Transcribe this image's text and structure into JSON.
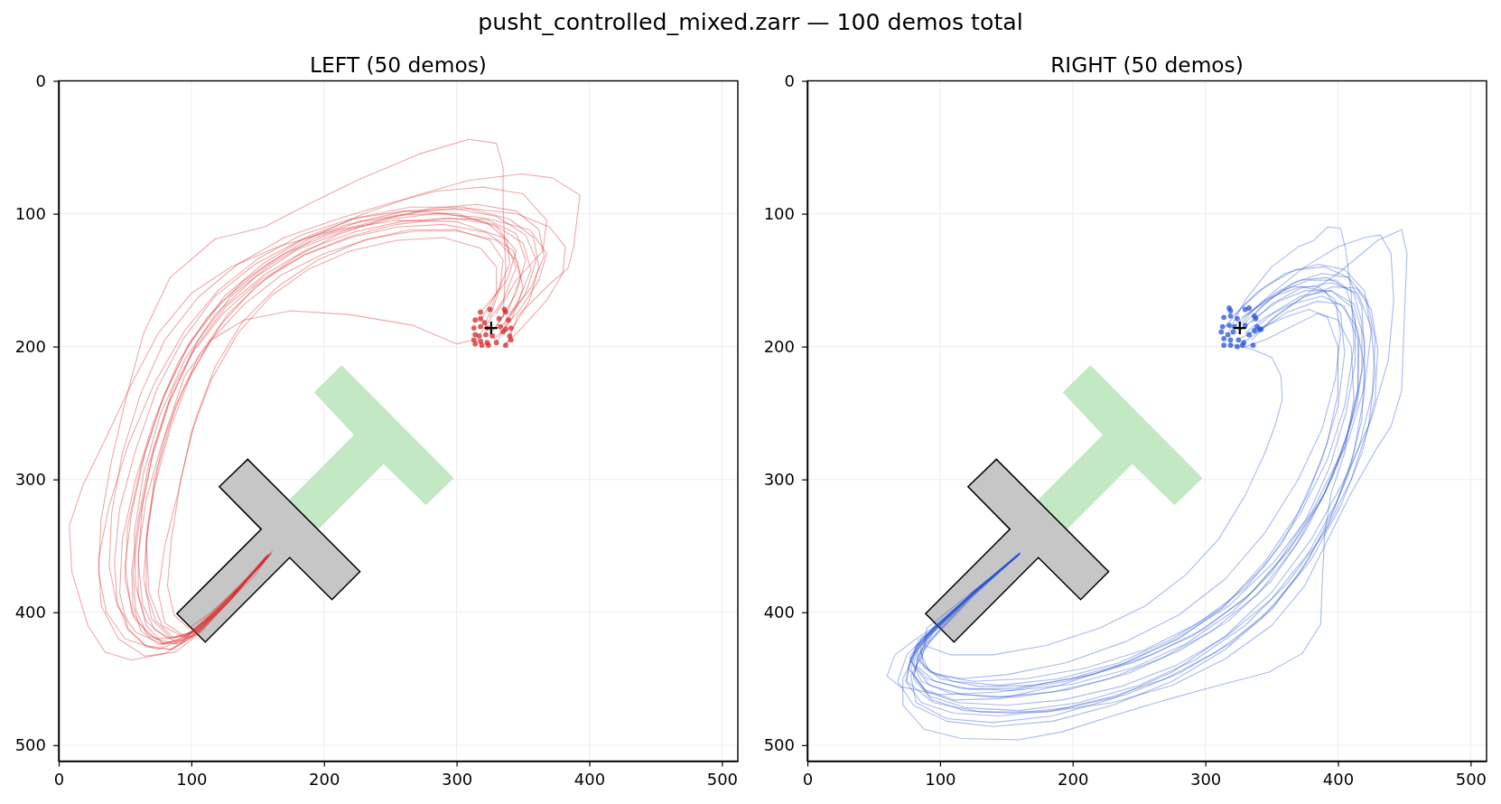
{
  "chart_data": [
    {
      "type": "line",
      "title": "LEFT (50 demos)",
      "annotations": [
        "pusht_controlled_mixed.zarr — 100 demos total"
      ],
      "xlim": [
        0,
        512
      ],
      "ylim": [
        512,
        0
      ],
      "xticks": [
        0,
        100,
        200,
        300,
        400,
        500
      ],
      "yticks": [
        0,
        100,
        200,
        300,
        400,
        500
      ],
      "grid": true,
      "series": [
        {
          "type": "line",
          "color": "#d62728",
          "x": [
            330,
            345,
            352,
            345,
            320,
            285,
            250,
            215,
            180,
            148,
            118,
            95,
            77,
            64,
            57,
            58,
            66,
            82,
            100,
            120,
            140,
            158
          ],
          "values": [
            185,
            160,
            135,
            115,
            103,
            100,
            104,
            113,
            127,
            148,
            176,
            210,
            250,
            295,
            340,
            380,
            407,
            420,
            415,
            397,
            377,
            358
          ]
        },
        {
          "type": "line",
          "color": "#d62728",
          "x": [
            335,
            337,
            335,
            335,
            330,
            309,
            272,
            227,
            190,
            155,
            118,
            84,
            64,
            51,
            40,
            32,
            30,
            36,
            50,
            75,
            100,
            125,
            157
          ],
          "values": [
            178,
            140,
            95,
            65,
            47,
            44,
            55,
            74,
            92,
            110,
            119,
            148,
            190,
            238,
            285,
            330,
            370,
            400,
            420,
            428,
            418,
            393,
            357
          ]
        },
        {
          "type": "line",
          "color": "#d62728",
          "x": [
            318,
            335,
            345,
            335,
            300,
            255,
            210,
            165,
            130,
            100,
            75,
            55,
            35,
            18,
            8,
            10,
            22,
            35,
            55,
            80,
            102,
            130,
            157
          ],
          "values": [
            190,
            165,
            140,
            118,
            106,
            105,
            112,
            125,
            140,
            160,
            190,
            228,
            270,
            305,
            335,
            370,
            410,
            430,
            436,
            431,
            418,
            390,
            358
          ]
        },
        {
          "type": "line",
          "color": "#d62728",
          "x": [
            338,
            346,
            369,
            384,
            388,
            393,
            372,
            349,
            309,
            270,
            230,
            192,
            157,
            123,
            97,
            77,
            62,
            52,
            50,
            57,
            73,
            95,
            120,
            145,
            160
          ],
          "values": [
            198,
            177,
            154,
            141,
            126,
            86,
            73,
            70,
            75,
            86,
            100,
            117,
            138,
            166,
            200,
            243,
            290,
            335,
            375,
            405,
            420,
            418,
            398,
            373,
            356
          ]
        },
        {
          "type": "line",
          "color": "#d62728",
          "x": [
            313,
            300,
            267,
            220,
            175,
            140,
            115,
            95,
            82,
            72,
            66,
            68,
            78,
            95,
            115,
            138,
            158
          ],
          "values": [
            195,
            198,
            184,
            176,
            173,
            180,
            195,
            222,
            260,
            300,
            345,
            385,
            410,
            419,
            403,
            380,
            358
          ]
        },
        {
          "type": "line",
          "color": "#d62728",
          "x": [
            325,
            333,
            335,
            325,
            300,
            265,
            230,
            195,
            165,
            138,
            118,
            103,
            92,
            85,
            82,
            87,
            98,
            115,
            135,
            155
          ],
          "values": [
            178,
            155,
            135,
            120,
            112,
            112,
            120,
            135,
            155,
            182,
            215,
            255,
            300,
            345,
            380,
            402,
            412,
            400,
            382,
            362
          ]
        },
        {
          "type": "line",
          "color": "#d62728",
          "x": [
            340,
            355,
            362,
            358,
            340,
            305,
            265,
            225,
            188,
            155,
            125,
            100,
            80,
            65,
            55,
            50,
            55,
            68,
            88,
            108,
            132,
            158
          ],
          "values": [
            190,
            165,
            140,
            118,
            104,
            95,
            95,
            103,
            117,
            137,
            162,
            195,
            235,
            280,
            325,
            365,
            400,
            418,
            424,
            413,
            388,
            356
          ]
        },
        {
          "type": "line",
          "color": "#d62728",
          "x": [
            330,
            345,
            365,
            368,
            350,
            320,
            285,
            250,
            210,
            170,
            135,
            105,
            80,
            62,
            48,
            40,
            38,
            44,
            58,
            78,
            100,
            125,
            156
          ],
          "values": [
            175,
            150,
            128,
            105,
            85,
            80,
            83,
            92,
            104,
            118,
            138,
            163,
            195,
            235,
            280,
            325,
            365,
            395,
            415,
            424,
            418,
            395,
            360
          ]
        },
        {
          "type": "line",
          "color": "#d62728",
          "x": [
            328,
            348,
            362,
            368,
            355,
            325,
            290,
            255,
            220,
            185,
            155,
            128,
            106,
            88,
            75,
            67,
            64,
            70,
            85,
            105,
            128,
            158
          ],
          "values": [
            195,
            172,
            150,
            130,
            112,
            104,
            104,
            108,
            117,
            131,
            150,
            175,
            206,
            245,
            290,
            335,
            375,
            405,
            420,
            414,
            392,
            357
          ]
        },
        {
          "type": "line",
          "color": "#d62728",
          "x": [
            322,
            330,
            330,
            318,
            290,
            255,
            220,
            188,
            160,
            135,
            115,
            100,
            90,
            80,
            75,
            80,
            95,
            112,
            135,
            160
          ],
          "values": [
            182,
            160,
            140,
            126,
            118,
            120,
            128,
            142,
            162,
            190,
            225,
            265,
            310,
            350,
            385,
            408,
            418,
            406,
            383,
            356
          ]
        },
        {
          "type": "line",
          "color": "#d62728",
          "x": [
            335,
            350,
            368,
            380,
            382,
            370,
            345,
            310,
            275,
            240,
            205,
            170,
            140,
            112,
            90,
            72,
            58,
            48,
            46,
            52,
            66,
            85,
            105,
            130,
            158
          ],
          "values": [
            200,
            185,
            165,
            145,
            125,
            110,
            100,
            96,
            98,
            105,
            115,
            130,
            150,
            178,
            212,
            255,
            300,
            345,
            385,
            412,
            426,
            428,
            416,
            390,
            357
          ]
        },
        {
          "type": "line",
          "color": "#d62728",
          "x": [
            320,
            338,
            345,
            330,
            300,
            260,
            220,
            183,
            150,
            120,
            95,
            72,
            52,
            38,
            30,
            32,
            45,
            65,
            88,
            106,
            130,
            157
          ],
          "values": [
            172,
            150,
            128,
            110,
            100,
            98,
            104,
            116,
            134,
            158,
            188,
            228,
            275,
            320,
            360,
            395,
            420,
            433,
            430,
            416,
            390,
            358
          ]
        },
        {
          "type": "line",
          "color": "#d62728",
          "x": [
            332,
            347,
            356,
            350,
            328,
            295,
            258,
            222,
            187,
            155,
            126,
            102,
            84,
            70,
            61,
            56,
            58,
            66,
            80,
            98,
            118,
            140,
            158
          ],
          "values": [
            188,
            165,
            142,
            122,
            108,
            103,
            106,
            114,
            127,
            146,
            170,
            202,
            240,
            285,
            330,
            370,
            398,
            415,
            424,
            417,
            398,
            376,
            357
          ]
        },
        {
          "type": "line",
          "color": "#d62728",
          "x": [
            326,
            340,
            348,
            343,
            322,
            290,
            255,
            220,
            185,
            152,
            124,
            100,
            82,
            68,
            60,
            55,
            56,
            62,
            75,
            92,
            112,
            135,
            157
          ],
          "values": [
            190,
            170,
            148,
            128,
            114,
            108,
            110,
            118,
            131,
            150,
            175,
            206,
            245,
            288,
            330,
            368,
            395,
            414,
            424,
            423,
            405,
            383,
            359
          ]
        },
        {
          "type": "line",
          "color": "#d62728",
          "x": [
            336,
            352,
            360,
            352,
            330,
            298,
            262,
            226,
            192,
            160,
            130,
            106,
            86,
            72,
            63,
            60,
            63,
            72,
            88,
            106,
            128,
            150,
            161
          ],
          "values": [
            184,
            160,
            135,
            116,
            102,
            96,
            98,
            106,
            119,
            138,
            162,
            194,
            232,
            275,
            320,
            360,
            393,
            413,
            422,
            412,
            390,
            367,
            354
          ]
        },
        {
          "type": "line",
          "color": "#d62728",
          "x": [
            330,
            342,
            350,
            346,
            330,
            300,
            268,
            234,
            200,
            168,
            140,
            114,
            94,
            78,
            66,
            60,
            60,
            66,
            78,
            94,
            114,
            136,
            157
          ],
          "values": [
            196,
            178,
            156,
            136,
            120,
            113,
            113,
            119,
            130,
            146,
            168,
            196,
            232,
            272,
            315,
            355,
            388,
            410,
            423,
            421,
            404,
            382,
            359
          ]
        },
        {
          "type": "line",
          "color": "#d62728",
          "x": [
            318,
            330,
            340,
            338,
            322,
            292,
            256,
            218,
            182,
            148,
            118,
            94,
            74,
            58,
            46,
            42,
            44,
            52,
            66,
            84,
            104,
            128,
            156
          ],
          "values": [
            180,
            160,
            138,
            120,
            106,
            100,
            101,
            108,
            120,
            138,
            162,
            194,
            232,
            278,
            322,
            362,
            392,
            413,
            425,
            428,
            416,
            391,
            359
          ]
        },
        {
          "type": "line",
          "color": "#d62728",
          "x": [
            340,
            356,
            366,
            362,
            345,
            315,
            280,
            245,
            210,
            178,
            148,
            122,
            100,
            84,
            72,
            66,
            66,
            73,
            86,
            104,
            126,
            148,
            160
          ],
          "values": [
            176,
            156,
            132,
            112,
            98,
            93,
            96,
            104,
            116,
            133,
            155,
            184,
            220,
            262,
            306,
            348,
            384,
            406,
            419,
            414,
            394,
            372,
            355
          ]
        },
        {
          "type": "scatter",
          "marker": "circle",
          "color": "#d62728",
          "x": [
            318,
            325,
            336,
            337,
            314,
            318,
            321,
            332,
            339,
            313,
            318,
            323,
            333,
            337,
            341,
            314,
            317,
            322,
            327,
            335,
            340,
            313,
            318,
            323,
            330,
            337,
            341,
            314,
            319,
            324
          ],
          "values": [
            174,
            172,
            172,
            174,
            180,
            179,
            182,
            179,
            180,
            186,
            185,
            186,
            185,
            187,
            186,
            191,
            192,
            191,
            192,
            189,
            192,
            195,
            196,
            197,
            197,
            199,
            195,
            198,
            199,
            199
          ]
        },
        {
          "type": "scatter",
          "marker": "cross",
          "color": "#000000",
          "x": [
            326
          ],
          "values": [
            186
          ]
        }
      ]
    },
    {
      "type": "line",
      "title": "RIGHT (50 demos)",
      "xlim": [
        0,
        512
      ],
      "ylim": [
        512,
        0
      ],
      "xticks": [
        0,
        100,
        200,
        300,
        400,
        500
      ],
      "yticks": [
        0,
        100,
        200,
        300,
        400,
        500
      ],
      "grid": true,
      "series": [
        {
          "type": "line",
          "color": "#2653d4",
          "x": [
            325,
            337,
            352,
            372,
            392,
            406,
            413,
            413,
            406,
            394,
            376,
            350,
            320,
            285,
            245,
            200,
            155,
            115,
            90,
            78,
            84,
            100,
            125,
            160
          ],
          "values": [
            185,
            172,
            160,
            150,
            148,
            156,
            178,
            212,
            250,
            290,
            330,
            370,
            400,
            424,
            442,
            454,
            459,
            457,
            450,
            437,
            421,
            408,
            385,
            356
          ]
        },
        {
          "type": "line",
          "color": "#2653d4",
          "x": [
            335,
            350,
            370,
            400,
            430,
            448,
            452,
            450,
            448,
            440,
            429,
            410,
            394,
            375,
            350,
            315,
            275,
            230,
            180,
            130,
            95,
            75,
            78,
            95,
            125,
            160
          ],
          "values": [
            195,
            180,
            165,
            145,
            120,
            112,
            130,
            180,
            233,
            260,
            277,
            310,
            342,
            380,
            410,
            435,
            455,
            468,
            475,
            475,
            468,
            452,
            432,
            413,
            385,
            356
          ]
        },
        {
          "type": "line",
          "color": "#2653d4",
          "x": [
            318,
            330,
            350,
            370,
            382,
            392,
            402,
            406,
            410,
            412,
            405,
            392,
            372,
            345,
            312,
            275,
            235,
            190,
            145,
            110,
            88,
            85,
            98,
            125,
            158
          ],
          "values": [
            188,
            165,
            140,
            125,
            120,
            110,
            111,
            128,
            160,
            200,
            245,
            285,
            325,
            365,
            397,
            420,
            438,
            450,
            455,
            452,
            442,
            425,
            410,
            385,
            358
          ]
        },
        {
          "type": "line",
          "color": "#2653d4",
          "x": [
            330,
            345,
            365,
            385,
            400,
            410,
            412,
            405,
            395,
            390,
            388,
            387,
            373,
            348,
            310,
            270,
            230,
            192,
            159,
            116,
            88,
            72,
            72,
            83,
            99,
            125,
            160
          ],
          "values": [
            200,
            195,
            185,
            175,
            180,
            200,
            240,
            280,
            310,
            340,
            380,
            409,
            431,
            445,
            455,
            466,
            478,
            490,
            496,
            495,
            488,
            470,
            450,
            428,
            410,
            385,
            356
          ]
        },
        {
          "type": "line",
          "color": "#2653d4",
          "x": [
            318,
            335,
            350,
            357,
            358,
            353,
            345,
            330,
            310,
            285,
            255,
            220,
            180,
            140,
            108,
            88,
            90,
            105,
            130,
            158
          ],
          "values": [
            198,
            202,
            208,
            222,
            240,
            258,
            280,
            312,
            345,
            372,
            395,
            412,
            425,
            432,
            432,
            425,
            412,
            400,
            380,
            358
          ]
        },
        {
          "type": "line",
          "color": "#2653d4",
          "x": [
            328,
            345,
            365,
            385,
            398,
            402,
            398,
            388,
            370,
            345,
            315,
            280,
            240,
            195,
            150,
            115,
            92,
            85,
            95,
            120,
            158
          ],
          "values": [
            178,
            165,
            155,
            155,
            165,
            190,
            225,
            262,
            300,
            340,
            375,
            402,
            422,
            438,
            447,
            450,
            445,
            430,
            415,
            390,
            358
          ]
        },
        {
          "type": "line",
          "color": "#2653d4",
          "x": [
            335,
            350,
            372,
            395,
            415,
            425,
            428,
            423,
            410,
            390,
            362,
            330,
            292,
            250,
            205,
            160,
            120,
            92,
            80,
            87,
            102,
            128,
            160
          ],
          "values": [
            182,
            168,
            156,
            152,
            160,
            185,
            220,
            260,
            300,
            340,
            378,
            410,
            436,
            455,
            468,
            474,
            472,
            463,
            447,
            427,
            410,
            383,
            356
          ]
        },
        {
          "type": "line",
          "color": "#2653d4",
          "x": [
            322,
            338,
            360,
            385,
            405,
            420,
            425,
            420,
            408,
            390,
            365,
            335,
            300,
            260,
            215,
            170,
            130,
            100,
            85,
            90,
            105,
            130,
            160
          ],
          "values": [
            176,
            160,
            145,
            138,
            142,
            158,
            190,
            230,
            270,
            310,
            350,
            385,
            412,
            432,
            447,
            455,
            456,
            450,
            438,
            420,
            405,
            382,
            355
          ]
        },
        {
          "type": "line",
          "color": "#2653d4",
          "x": [
            330,
            345,
            365,
            388,
            405,
            415,
            415,
            405,
            388,
            362,
            330,
            290,
            245,
            195,
            145,
            100,
            70,
            60,
            66,
            82,
            100,
            128,
            160
          ],
          "values": [
            190,
            178,
            168,
            162,
            170,
            195,
            235,
            275,
            315,
            355,
            390,
            418,
            438,
            452,
            460,
            462,
            456,
            448,
            432,
            420,
            408,
            384,
            356
          ]
        },
        {
          "type": "line",
          "color": "#2653d4",
          "x": [
            315,
            328,
            345,
            368,
            390,
            408,
            418,
            420,
            414,
            400,
            380,
            352,
            318,
            278,
            235,
            190,
            145,
            110,
            88,
            76,
            82,
            98,
            125,
            158
          ],
          "values": [
            185,
            170,
            155,
            142,
            140,
            148,
            170,
            205,
            245,
            285,
            325,
            362,
            395,
            420,
            440,
            455,
            465,
            466,
            458,
            442,
            425,
            410,
            385,
            357
          ]
        },
        {
          "type": "line",
          "color": "#2653d4",
          "x": [
            338,
            352,
            372,
            395,
            412,
            420,
            420,
            412,
            398,
            378,
            350,
            315,
            275,
            230,
            185,
            140,
            105,
            80,
            68,
            75,
            92,
            122,
            159
          ],
          "values": [
            186,
            174,
            162,
            158,
            168,
            195,
            235,
            280,
            320,
            360,
            398,
            428,
            452,
            470,
            482,
            486,
            482,
            470,
            452,
            432,
            415,
            388,
            357
          ]
        },
        {
          "type": "line",
          "color": "#2653d4",
          "x": [
            326,
            342,
            360,
            378,
            392,
            400,
            400,
            392,
            378,
            358,
            330,
            295,
            255,
            210,
            165,
            125,
            96,
            83,
            90,
            108,
            132,
            160
          ],
          "values": [
            194,
            186,
            178,
            172,
            178,
            200,
            235,
            272,
            310,
            348,
            382,
            408,
            428,
            442,
            450,
            452,
            447,
            435,
            418,
            403,
            380,
            356
          ]
        },
        {
          "type": "line",
          "color": "#2653d4",
          "x": [
            332,
            350,
            375,
            400,
            420,
            432,
            440,
            442,
            438,
            425,
            405,
            380,
            350,
            315,
            275,
            230,
            185,
            140,
            105,
            82,
            78,
            92,
            122,
            160
          ],
          "values": [
            176,
            160,
            140,
            125,
            118,
            116,
            130,
            165,
            210,
            255,
            300,
            345,
            385,
            418,
            445,
            465,
            478,
            483,
            480,
            468,
            448,
            422,
            390,
            356
          ]
        },
        {
          "type": "line",
          "color": "#2653d4",
          "x": [
            330,
            342,
            358,
            378,
            398,
            412,
            418,
            418,
            410,
            396,
            376,
            350,
            318,
            282,
            242,
            198,
            155,
            118,
            92,
            80,
            84,
            100,
            126,
            160
          ],
          "values": [
            182,
            170,
            158,
            150,
            150,
            160,
            182,
            218,
            258,
            298,
            338,
            376,
            406,
            428,
            446,
            458,
            464,
            462,
            455,
            440,
            424,
            408,
            384,
            356
          ]
        },
        {
          "type": "line",
          "color": "#2653d4",
          "x": [
            324,
            338,
            355,
            375,
            395,
            410,
            416,
            415,
            406,
            390,
            368,
            340,
            305,
            268,
            228,
            185,
            142,
            108,
            86,
            78,
            86,
            102,
            128,
            160
          ],
          "values": [
            190,
            178,
            166,
            158,
            158,
            170,
            195,
            232,
            270,
            310,
            350,
            386,
            414,
            434,
            450,
            460,
            464,
            461,
            452,
            436,
            420,
            406,
            383,
            356
          ]
        },
        {
          "type": "line",
          "color": "#2653d4",
          "x": [
            335,
            348,
            366,
            388,
            408,
            422,
            428,
            426,
            416,
            400,
            378,
            350,
            316,
            278,
            236,
            192,
            150,
            114,
            90,
            78,
            82,
            98,
            124,
            158
          ],
          "values": [
            178,
            165,
            152,
            145,
            148,
            165,
            195,
            235,
            275,
            315,
            355,
            390,
            418,
            440,
            456,
            466,
            470,
            468,
            460,
            444,
            426,
            410,
            386,
            357
          ]
        },
        {
          "type": "line",
          "color": "#2653d4",
          "x": [
            320,
            334,
            352,
            372,
            390,
            402,
            405,
            400,
            388,
            370,
            345,
            315,
            280,
            240,
            198,
            158,
            122,
            96,
            82,
            84,
            96,
            122,
            158
          ],
          "values": [
            186,
            174,
            162,
            155,
            158,
            175,
            205,
            245,
            285,
            325,
            362,
            395,
            420,
            438,
            450,
            457,
            458,
            452,
            440,
            426,
            410,
            388,
            358
          ]
        },
        {
          "type": "line",
          "color": "#2653d4",
          "x": [
            330,
            344,
            362,
            384,
            402,
            414,
            420,
            418,
            408,
            392,
            370,
            342,
            308,
            270,
            228,
            185,
            145,
            110,
            86,
            74,
            78,
            94,
            122,
            160
          ],
          "values": [
            196,
            186,
            174,
            166,
            168,
            185,
            215,
            255,
            295,
            335,
            372,
            405,
            430,
            450,
            464,
            474,
            478,
            476,
            468,
            452,
            434,
            416,
            388,
            356
          ]
        },
        {
          "type": "line",
          "color": "#2653d4",
          "x": [
            338,
            354,
            374,
            396,
            414,
            425,
            430,
            428,
            418,
            402,
            380,
            352,
            318,
            280,
            240,
            196,
            154,
            118,
            94,
            80,
            84,
            100,
            126,
            160
          ],
          "values": [
            190,
            176,
            163,
            155,
            156,
            172,
            202,
            240,
            280,
            320,
            360,
            395,
            424,
            446,
            462,
            472,
            476,
            474,
            466,
            450,
            432,
            414,
            387,
            356
          ]
        },
        {
          "type": "scatter",
          "marker": "circle",
          "color": "#2653d4",
          "x": [
            318,
            319,
            330,
            333,
            314,
            319,
            324,
            337,
            338,
            313,
            318,
            322,
            330,
            339,
            342,
            312,
            317,
            321,
            333,
            337,
            314,
            319,
            325,
            329,
            336,
            314,
            319,
            324,
            328,
            341
          ],
          "values": [
            171,
            173,
            172,
            171,
            178,
            177,
            179,
            177,
            179,
            185,
            184,
            185,
            184,
            185,
            187,
            189,
            191,
            189,
            191,
            188,
            194,
            195,
            195,
            197,
            199,
            199,
            199,
            200,
            199,
            187
          ]
        },
        {
          "type": "scatter",
          "marker": "cross",
          "color": "#000000",
          "x": [
            326
          ],
          "values": [
            186
          ]
        }
      ]
    }
  ]
}
